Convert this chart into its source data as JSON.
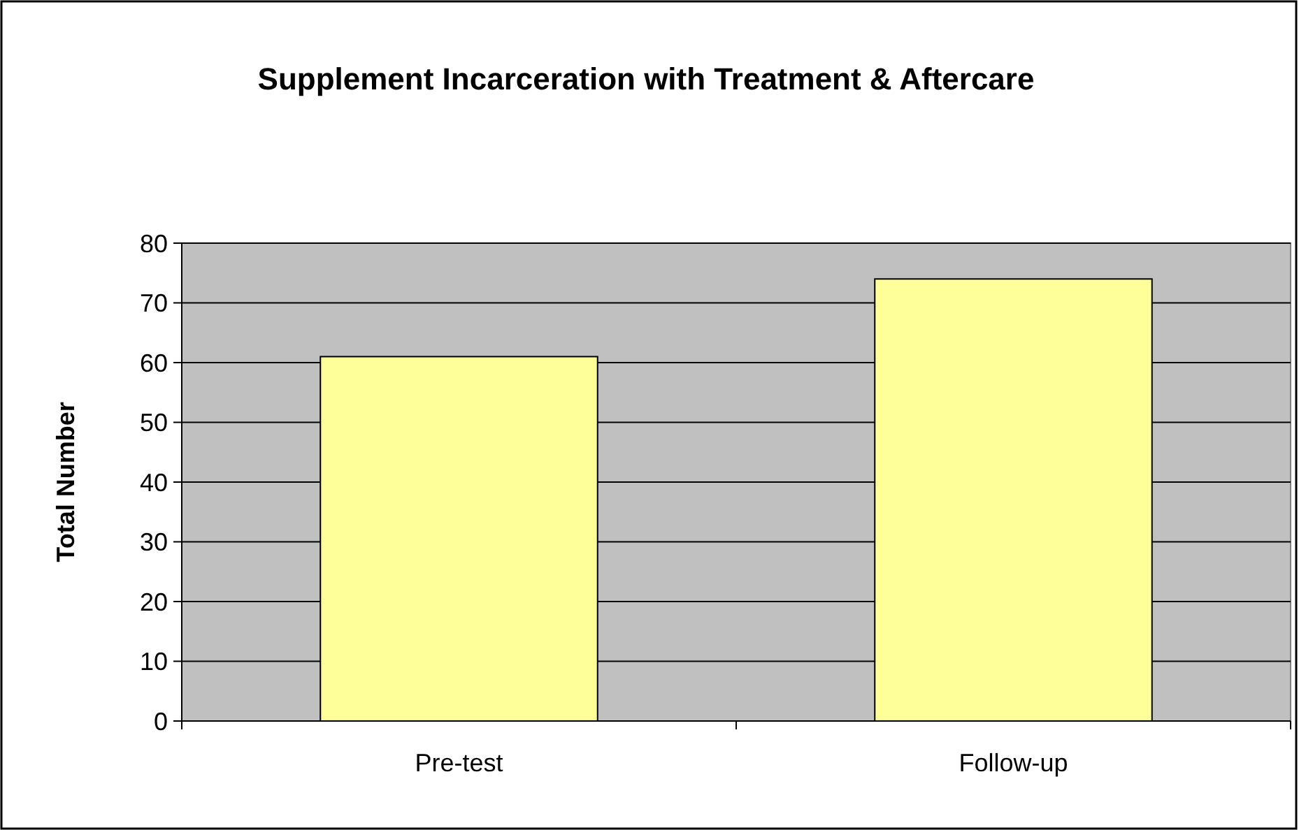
{
  "chart_data": {
    "type": "bar",
    "title": "Supplement Incarceration with Treatment & Aftercare",
    "ylabel": "Total Number",
    "categories": [
      "Pre-test",
      "Follow-up"
    ],
    "values": [
      61,
      74
    ],
    "color": "#ffff99",
    "ylim": [
      0,
      80
    ],
    "yticks": [
      0,
      10,
      20,
      30,
      40,
      50,
      60,
      70,
      80
    ],
    "grid": "y"
  }
}
